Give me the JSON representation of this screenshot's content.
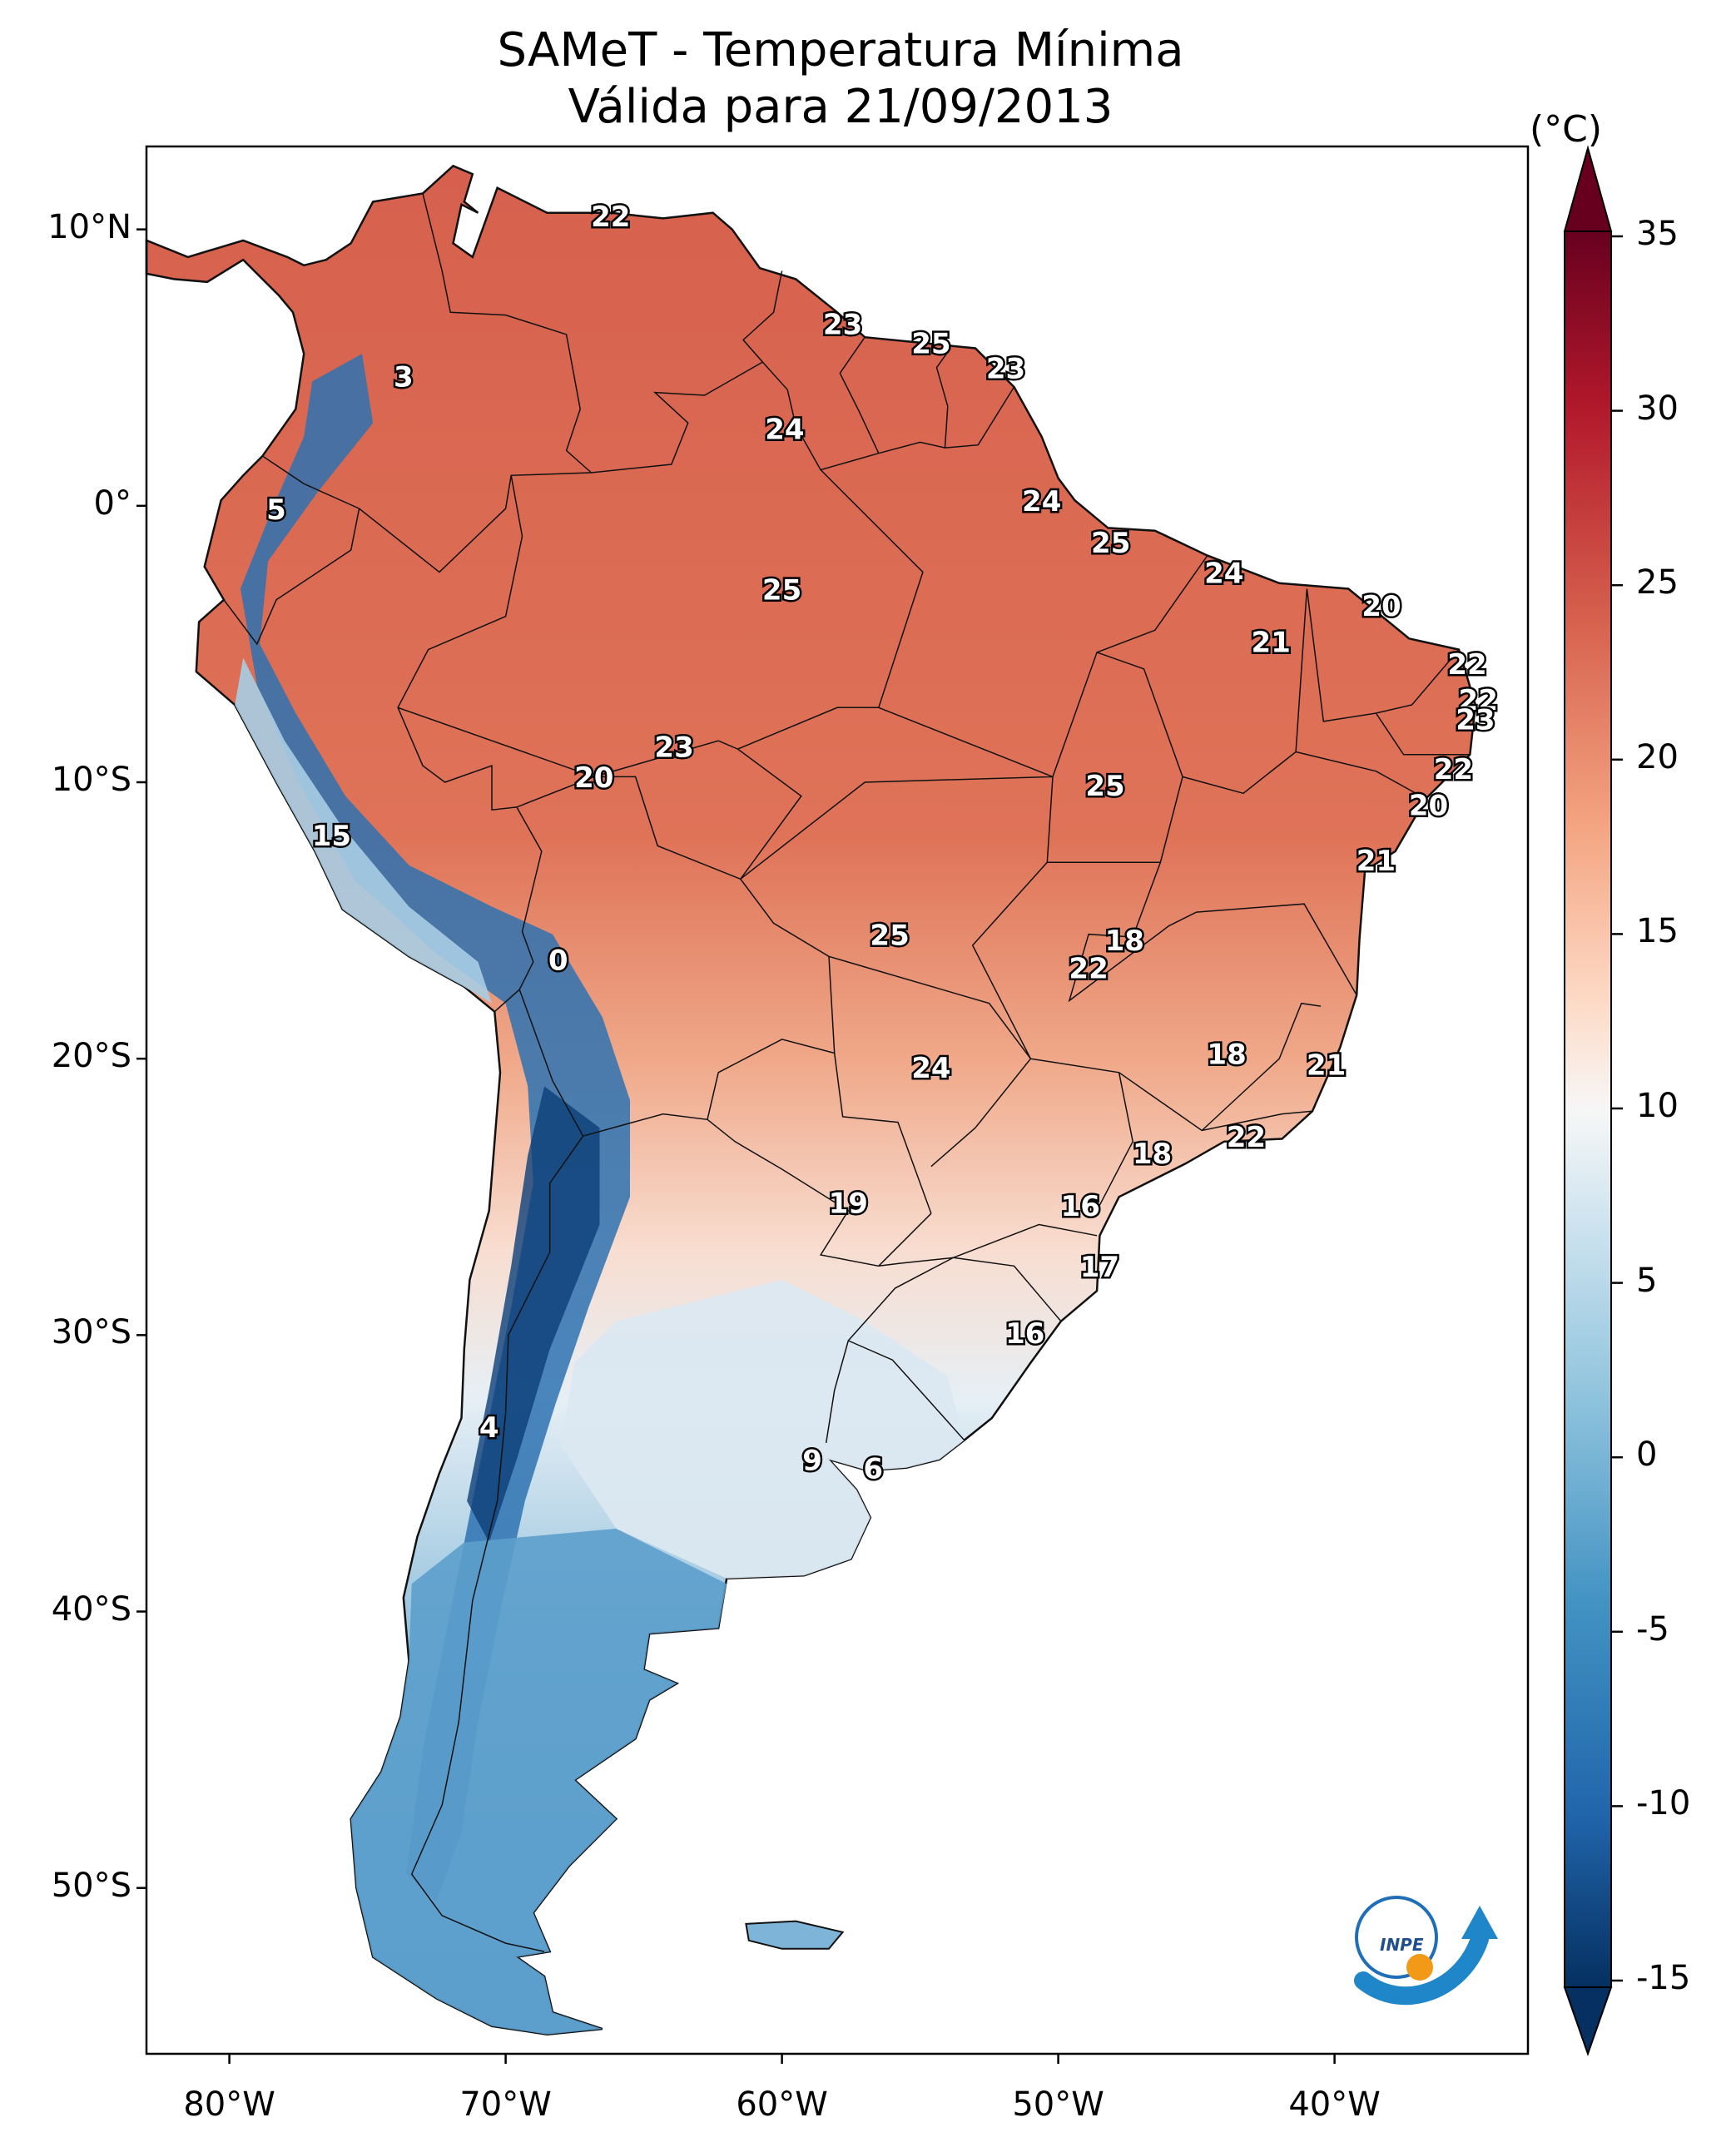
{
  "title": {
    "line1": "SAMeT - Temperatura Mínima",
    "line2": "Válida para 21/09/2013"
  },
  "colorbar": {
    "unit": "(°C)",
    "ticks": [
      "35",
      "30",
      "25",
      "20",
      "15",
      "10",
      "5",
      "0",
      "-5",
      "-10",
      "-15"
    ]
  },
  "axes": {
    "lat_labels": [
      "10°N",
      "0°",
      "10°S",
      "20°S",
      "30°S",
      "40°S",
      "50°S"
    ],
    "lon_labels": [
      "80°W",
      "70°W",
      "60°W",
      "50°W",
      "40°W"
    ]
  },
  "logo": {
    "text": "INPE"
  },
  "point_labels": [
    {
      "v": "22",
      "lon": -66.2,
      "lat": 10.4
    },
    {
      "v": "3",
      "lon": -73.7,
      "lat": 4.6
    },
    {
      "v": "23",
      "lon": -57.8,
      "lat": 6.5
    },
    {
      "v": "25",
      "lon": -54.6,
      "lat": 5.8
    },
    {
      "v": "23",
      "lon": -51.9,
      "lat": 4.9
    },
    {
      "v": "24",
      "lon": -59.9,
      "lat": 2.7
    },
    {
      "v": "5",
      "lon": -78.3,
      "lat": -0.2
    },
    {
      "v": "24",
      "lon": -50.6,
      "lat": 0.1
    },
    {
      "v": "25",
      "lon": -48.1,
      "lat": -1.4
    },
    {
      "v": "24",
      "lon": -44.0,
      "lat": -2.5
    },
    {
      "v": "20",
      "lon": -38.3,
      "lat": -3.7
    },
    {
      "v": "25",
      "lon": -60.0,
      "lat": -3.1
    },
    {
      "v": "21",
      "lon": -42.3,
      "lat": -5.0
    },
    {
      "v": "22",
      "lon": -35.2,
      "lat": -5.8
    },
    {
      "v": "22",
      "lon": -34.8,
      "lat": -7.1
    },
    {
      "v": "23",
      "lon": -34.9,
      "lat": -7.8
    },
    {
      "v": "23",
      "lon": -63.9,
      "lat": -8.8
    },
    {
      "v": "22",
      "lon": -35.7,
      "lat": -9.6
    },
    {
      "v": "20",
      "lon": -66.8,
      "lat": -9.9
    },
    {
      "v": "25",
      "lon": -48.3,
      "lat": -10.2
    },
    {
      "v": "20",
      "lon": -36.6,
      "lat": -10.9
    },
    {
      "v": "15",
      "lon": -76.3,
      "lat": -12.0
    },
    {
      "v": "21",
      "lon": -38.5,
      "lat": -12.9
    },
    {
      "v": "25",
      "lon": -56.1,
      "lat": -15.6
    },
    {
      "v": "18",
      "lon": -47.6,
      "lat": -15.8
    },
    {
      "v": "22",
      "lon": -48.9,
      "lat": -16.8
    },
    {
      "v": "0",
      "lon": -68.1,
      "lat": -16.5
    },
    {
      "v": "18",
      "lon": -43.9,
      "lat": -19.9
    },
    {
      "v": "21",
      "lon": -40.3,
      "lat": -20.3
    },
    {
      "v": "24",
      "lon": -54.6,
      "lat": -20.4
    },
    {
      "v": "22",
      "lon": -43.2,
      "lat": -22.9
    },
    {
      "v": "18",
      "lon": -46.6,
      "lat": -23.5
    },
    {
      "v": "19",
      "lon": -57.6,
      "lat": -25.3
    },
    {
      "v": "16",
      "lon": -49.2,
      "lat": -25.4
    },
    {
      "v": "17",
      "lon": -48.5,
      "lat": -27.6
    },
    {
      "v": "16",
      "lon": -51.2,
      "lat": -30.0
    },
    {
      "v": "4",
      "lon": -70.6,
      "lat": -33.4
    },
    {
      "v": "9",
      "lon": -58.9,
      "lat": -34.6
    },
    {
      "v": "6",
      "lon": -56.7,
      "lat": -34.9
    }
  ]
}
